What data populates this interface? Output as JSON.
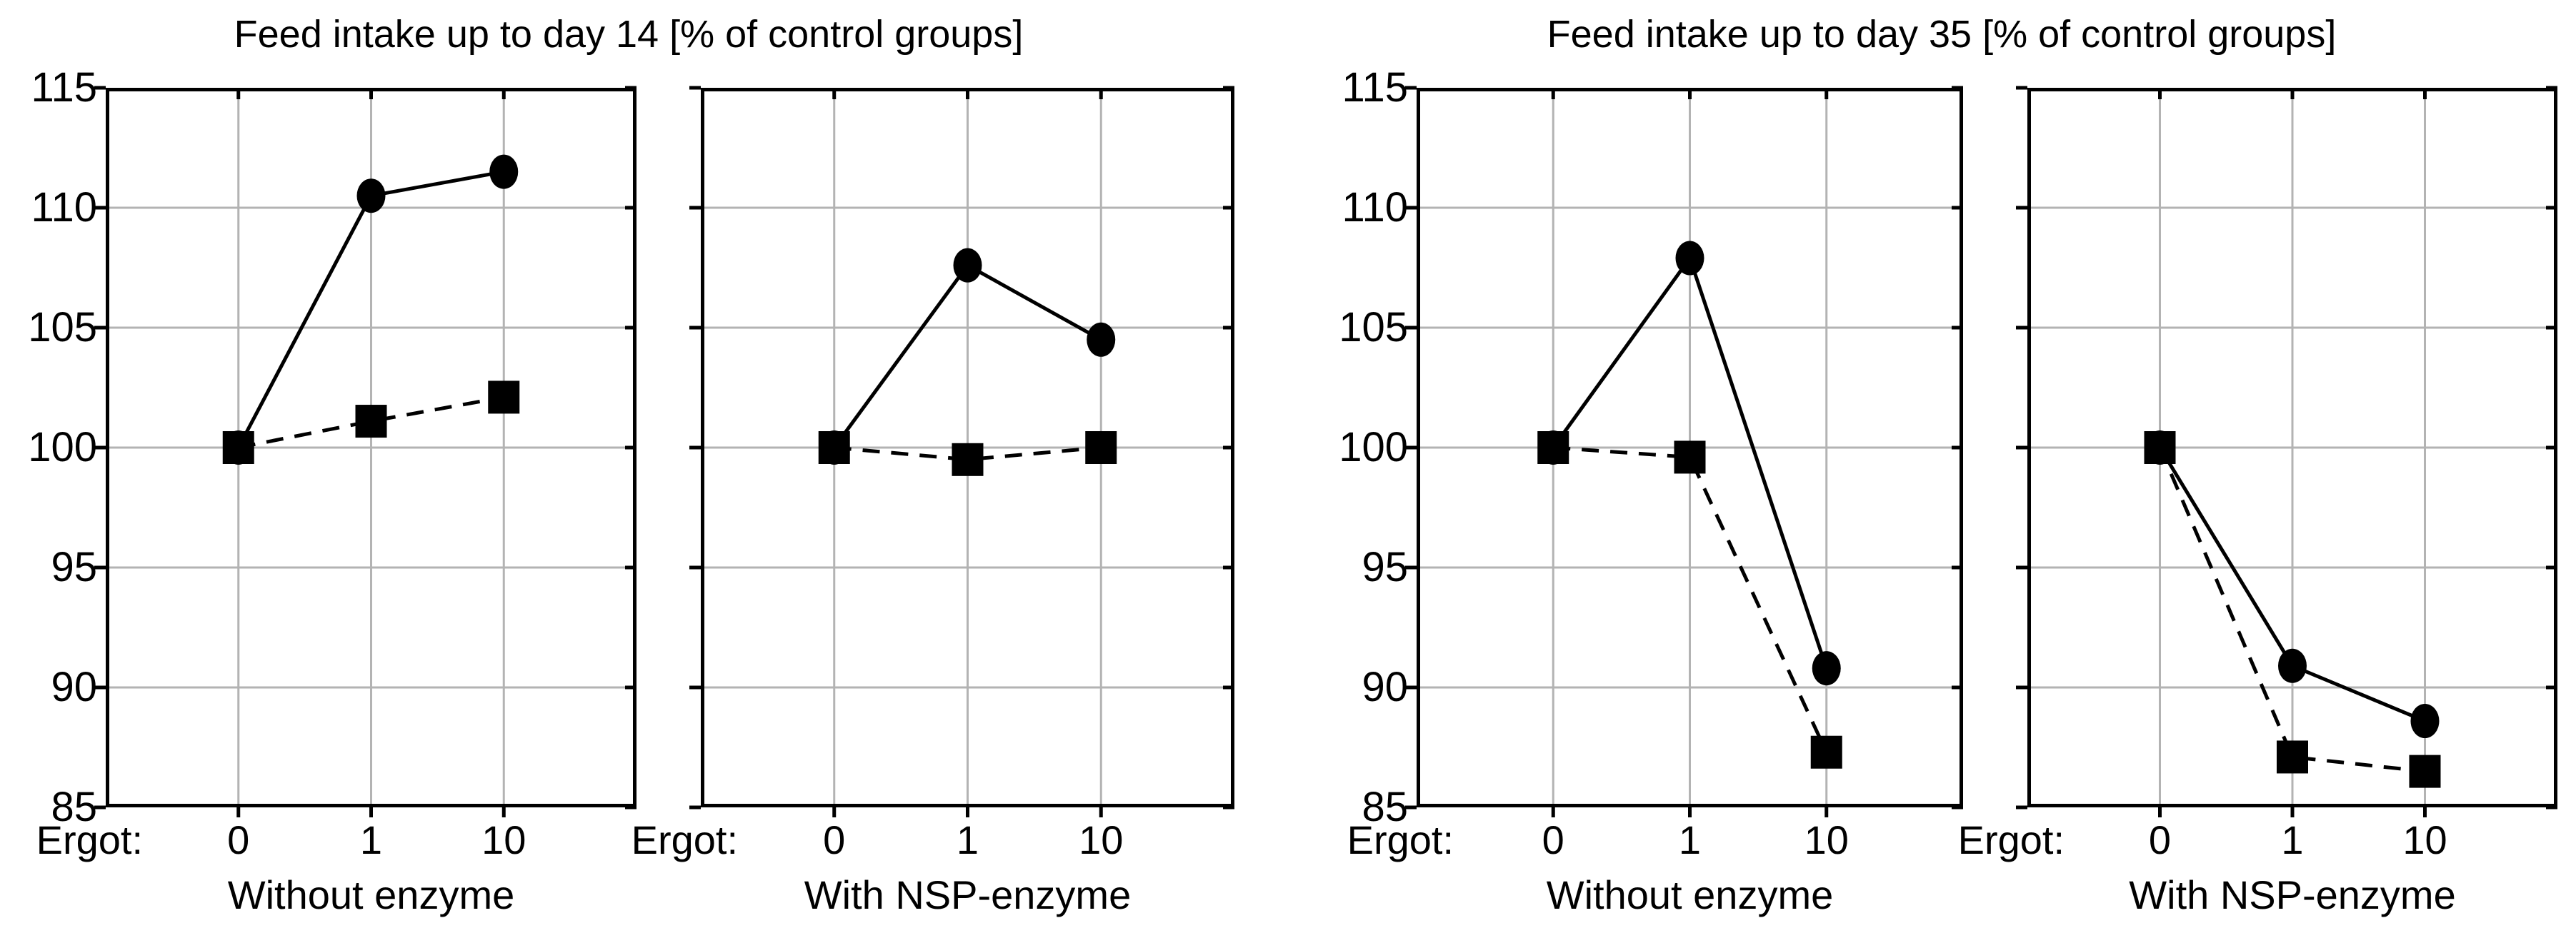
{
  "chart_data": [
    {
      "type": "line",
      "title": "Feed intake up to day 14 [% of control groups]",
      "ylabel": "",
      "ylim": [
        85,
        115
      ],
      "ystep": 5,
      "y_ticks": [
        115,
        110,
        105,
        100,
        95,
        90,
        85
      ],
      "grid": true,
      "x_prefix": "Ergot:",
      "categories": [
        "0",
        "1",
        "10"
      ],
      "panels": [
        {
          "xlabel": "Without enzyme",
          "series": [
            {
              "name": "filled-circle-solid-line",
              "marker": "circle",
              "line": "solid",
              "values": [
                100,
                110.5,
                111.5
              ]
            },
            {
              "name": "filled-square-dashed-line",
              "marker": "square",
              "line": "dashed",
              "values": [
                100,
                101.1,
                102.1
              ]
            }
          ]
        },
        {
          "xlabel": "With NSP-enzyme",
          "series": [
            {
              "name": "filled-circle-solid-line",
              "marker": "circle",
              "line": "solid",
              "values": [
                100,
                107.6,
                104.5
              ]
            },
            {
              "name": "filled-square-dashed-line",
              "marker": "square",
              "line": "dashed",
              "values": [
                100,
                99.5,
                100
              ]
            }
          ]
        }
      ]
    },
    {
      "type": "line",
      "title": "Feed intake up to day 35 [% of control groups]",
      "ylabel": "",
      "ylim": [
        85,
        115
      ],
      "ystep": 5,
      "y_ticks": [
        115,
        110,
        105,
        100,
        95,
        90,
        85
      ],
      "grid": true,
      "x_prefix": "Ergot:",
      "categories": [
        "0",
        "1",
        "10"
      ],
      "panels": [
        {
          "xlabel": "Without enzyme",
          "series": [
            {
              "name": "filled-circle-solid-line",
              "marker": "circle",
              "line": "solid",
              "values": [
                100,
                107.9,
                90.8
              ]
            },
            {
              "name": "filled-square-dashed-line",
              "marker": "square",
              "line": "dashed",
              "values": [
                100,
                99.6,
                87.3
              ]
            }
          ]
        },
        {
          "xlabel": "With NSP-enzyme",
          "series": [
            {
              "name": "filled-circle-solid-line",
              "marker": "circle",
              "line": "solid",
              "values": [
                100,
                90.9,
                88.6
              ]
            },
            {
              "name": "filled-square-dashed-line",
              "marker": "square",
              "line": "dashed",
              "values": [
                100,
                87.1,
                86.5
              ]
            }
          ]
        }
      ]
    }
  ],
  "colors": {
    "series": "#000000",
    "grid": "#b3b3b3",
    "frame": "#000000",
    "background": "#ffffff"
  }
}
